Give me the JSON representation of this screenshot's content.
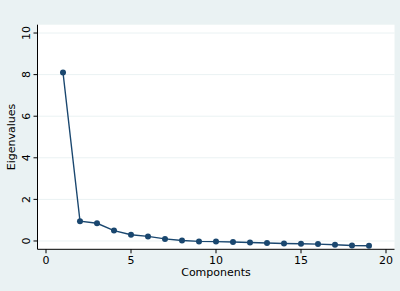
{
  "chart_data": {
    "type": "line",
    "x_label": "Components",
    "y_label": "Eigenvalues",
    "x": [
      1,
      2,
      3,
      4,
      5,
      6,
      7,
      8,
      9,
      10,
      11,
      12,
      13,
      14,
      15,
      16,
      17,
      18,
      19
    ],
    "values": [
      8.1,
      0.95,
      0.85,
      0.5,
      0.3,
      0.22,
      0.1,
      0.02,
      -0.02,
      -0.03,
      -0.05,
      -0.07,
      -0.1,
      -0.12,
      -0.13,
      -0.15,
      -0.18,
      -0.22,
      -0.23
    ],
    "color": "#1a476f",
    "xlim": [
      -0.5,
      20.5
    ],
    "xticks": [
      0,
      5,
      10,
      15,
      20
    ],
    "ylim": [
      -0.4,
      10.4
    ],
    "yticks": [
      0,
      2,
      4,
      6,
      8,
      10
    ],
    "grid": true,
    "marker": "circle",
    "line_style": "solid"
  }
}
